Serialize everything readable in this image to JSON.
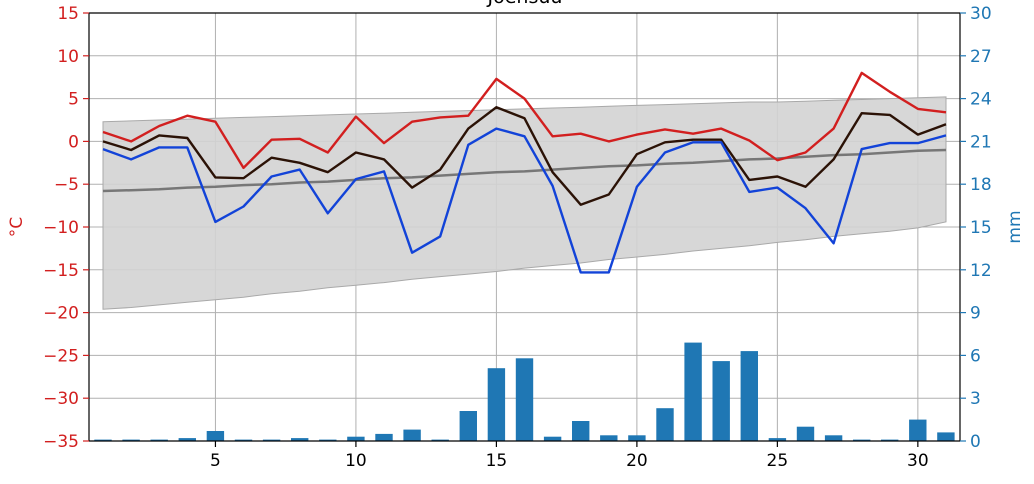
{
  "chart_data": {
    "type": "line",
    "title": "Joensuu",
    "x": [
      1,
      2,
      3,
      4,
      5,
      6,
      7,
      8,
      9,
      10,
      11,
      12,
      13,
      14,
      15,
      16,
      17,
      18,
      19,
      20,
      21,
      22,
      23,
      24,
      25,
      26,
      27,
      28,
      29,
      30,
      31
    ],
    "x_ticks": [
      5,
      10,
      15,
      20,
      25,
      30
    ],
    "xlim": [
      0.5,
      31.5
    ],
    "ylim_left": [
      -35,
      15
    ],
    "yticks_left": [
      -35,
      -30,
      -25,
      -20,
      -15,
      -10,
      -5,
      0,
      5,
      10,
      15
    ],
    "ylabel_left": "°C",
    "ylim_right": [
      0,
      30
    ],
    "yticks_right": [
      0,
      3,
      6,
      9,
      12,
      15,
      18,
      21,
      24,
      27,
      30
    ],
    "ylabel_right": "mm",
    "grid": true,
    "colors": {
      "max_temp": "#d21f1f",
      "mean_temp": "#2b1206",
      "min_temp": "#1243d8",
      "normal_mean": "#777777",
      "normal_range_fill": "#d3d3d3",
      "normal_range_edge": "#a9a9a9",
      "precipitation": "#1f77b4",
      "left_axis": "#d21f1f",
      "right_axis": "#1f77b4",
      "grid": "#b0b0b0"
    },
    "series": [
      {
        "key": "max_temp",
        "values": [
          1.1,
          0.0,
          1.8,
          3.0,
          2.3,
          -3.1,
          0.2,
          0.3,
          -1.3,
          2.9,
          -0.2,
          2.3,
          2.8,
          3.0,
          7.3,
          5.0,
          0.6,
          0.9,
          0.0,
          0.8,
          1.4,
          0.9,
          1.5,
          0.1,
          -2.2,
          -1.3,
          1.5,
          8.0,
          5.8,
          3.8,
          3.4
        ]
      },
      {
        "key": "mean_temp",
        "values": [
          0.0,
          -1.0,
          0.7,
          0.4,
          -4.2,
          -4.3,
          -1.9,
          -2.5,
          -3.6,
          -1.3,
          -2.1,
          -5.4,
          -3.3,
          1.5,
          4.0,
          2.7,
          -3.6,
          -7.4,
          -6.2,
          -1.5,
          -0.1,
          0.2,
          0.2,
          -4.5,
          -4.1,
          -5.3,
          -2.1,
          3.3,
          3.1,
          0.8,
          2.0
        ]
      },
      {
        "key": "min_temp",
        "values": [
          -0.9,
          -2.1,
          -0.7,
          -0.7,
          -9.4,
          -7.6,
          -4.1,
          -3.3,
          -8.4,
          -4.4,
          -3.5,
          -13.0,
          -11.1,
          -0.4,
          1.5,
          0.6,
          -5.2,
          -15.3,
          -15.3,
          -5.3,
          -1.3,
          -0.1,
          -0.1,
          -5.9,
          -5.4,
          -7.8,
          -11.9,
          -0.9,
          -0.2,
          -0.2,
          0.7
        ]
      }
    ],
    "normal": {
      "mean": [
        -5.8,
        -5.7,
        -5.6,
        -5.4,
        -5.3,
        -5.1,
        -5.0,
        -4.8,
        -4.7,
        -4.5,
        -4.3,
        -4.2,
        -4.0,
        -3.8,
        -3.6,
        -3.5,
        -3.3,
        -3.1,
        -2.9,
        -2.8,
        -2.6,
        -2.5,
        -2.3,
        -2.1,
        -2.0,
        -1.8,
        -1.6,
        -1.5,
        -1.3,
        -1.1,
        -1.0
      ],
      "upper": [
        2.3,
        2.4,
        2.5,
        2.6,
        2.7,
        2.8,
        2.9,
        3.0,
        3.1,
        3.2,
        3.3,
        3.4,
        3.5,
        3.6,
        3.7,
        3.8,
        3.9,
        4.0,
        4.1,
        4.2,
        4.3,
        4.4,
        4.5,
        4.6,
        4.6,
        4.7,
        4.8,
        4.9,
        5.0,
        5.1,
        5.2
      ],
      "lower": [
        -19.6,
        -19.4,
        -19.1,
        -18.8,
        -18.5,
        -18.2,
        -17.8,
        -17.5,
        -17.1,
        -16.8,
        -16.5,
        -16.1,
        -15.8,
        -15.5,
        -15.2,
        -14.8,
        -14.5,
        -14.2,
        -13.8,
        -13.5,
        -13.2,
        -12.8,
        -12.5,
        -12.2,
        -11.8,
        -11.5,
        -11.1,
        -10.8,
        -10.5,
        -10.1,
        -9.4
      ]
    },
    "precipitation": {
      "values": [
        0.1,
        0.1,
        0.1,
        0.2,
        0.7,
        0.1,
        0.1,
        0.2,
        0.1,
        0.3,
        0.5,
        0.8,
        0.1,
        2.1,
        5.1,
        5.8,
        0.3,
        1.4,
        0.4,
        0.4,
        2.3,
        6.9,
        5.6,
        6.3,
        0.2,
        1.0,
        0.4,
        0.1,
        0.1,
        1.5,
        0.6
      ]
    }
  }
}
